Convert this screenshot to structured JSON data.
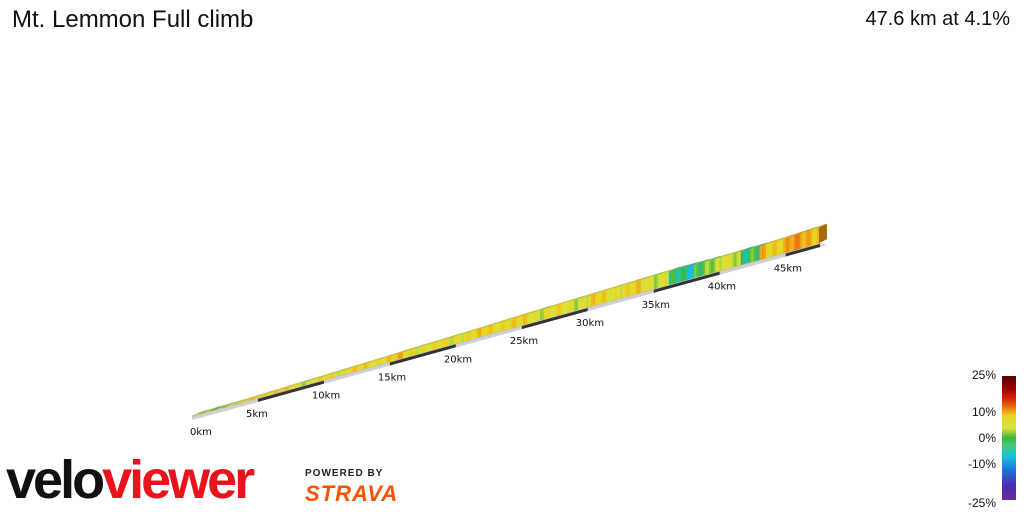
{
  "header": {
    "title": "Mt. Lemmon Full climb",
    "summary": "47.6 km at 4.1%"
  },
  "legend": {
    "labels": [
      "25%",
      "10%",
      "0%",
      "-10%",
      "-25%"
    ]
  },
  "branding": {
    "logo_text": "veloviewer",
    "powered_by": "POWERED BY",
    "strava": "STRAVA"
  },
  "chart_data": {
    "type": "area",
    "title": "Mt. Lemmon Full climb",
    "subtitle": "47.6 km at 4.1%",
    "x_unit": "km",
    "x_ticks": [
      "0km",
      "5km",
      "10km",
      "15km",
      "20km",
      "25km",
      "30km",
      "35km",
      "40km",
      "45km"
    ],
    "xlim": [
      0,
      47.6
    ],
    "total_distance_km": 47.6,
    "average_gradient_pct": 4.1,
    "gradient_scale_pct": [
      -25,
      -10,
      0,
      10,
      25
    ],
    "profile": [
      {
        "km": 0.0,
        "gradient": 1
      },
      {
        "km": 2.0,
        "gradient": 3
      },
      {
        "km": 4.0,
        "gradient": 6
      },
      {
        "km": 6.0,
        "gradient": 5
      },
      {
        "km": 8.0,
        "gradient": 4
      },
      {
        "km": 10.0,
        "gradient": 5
      },
      {
        "km": 12.0,
        "gradient": 5
      },
      {
        "km": 14.0,
        "gradient": 6
      },
      {
        "km": 16.0,
        "gradient": 5
      },
      {
        "km": 18.0,
        "gradient": 4
      },
      {
        "km": 20.0,
        "gradient": 5
      },
      {
        "km": 22.0,
        "gradient": 6
      },
      {
        "km": 24.0,
        "gradient": 5
      },
      {
        "km": 26.0,
        "gradient": 4
      },
      {
        "km": 28.0,
        "gradient": 4
      },
      {
        "km": 30.0,
        "gradient": 5
      },
      {
        "km": 32.0,
        "gradient": 5
      },
      {
        "km": 34.0,
        "gradient": 4
      },
      {
        "km": 36.0,
        "gradient": -2
      },
      {
        "km": 38.0,
        "gradient": 1
      },
      {
        "km": 40.0,
        "gradient": 4
      },
      {
        "km": 41.5,
        "gradient": -1
      },
      {
        "km": 43.0,
        "gradient": 7
      },
      {
        "km": 45.0,
        "gradient": 8
      },
      {
        "km": 47.6,
        "gradient": 8
      }
    ]
  }
}
